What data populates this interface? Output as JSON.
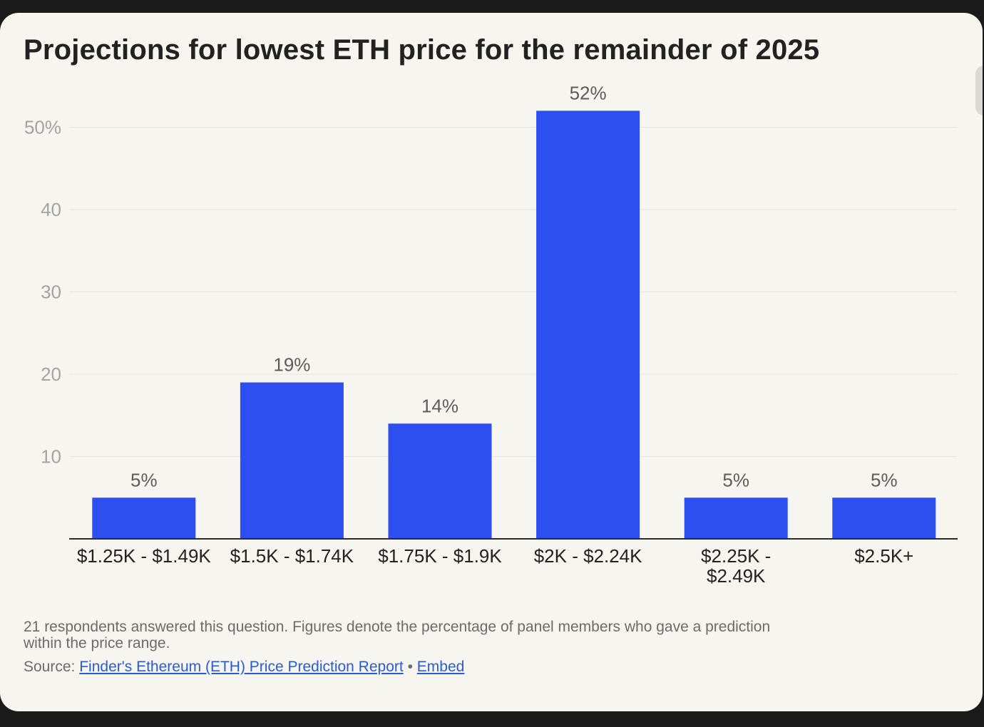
{
  "title": "Projections for lowest ETH price for the remainder of 2025",
  "note": "21 respondents answered this question. Figures denote the percentage of panel members who gave a prediction within the price range.",
  "source": {
    "label": "Source:",
    "link_text": "Finder's Ethereum (ETH) Price Prediction Report",
    "separator": "•",
    "embed_text": "Embed",
    "link_color": "#2a5bd7"
  },
  "colors": {
    "bar": "#2d4ff0",
    "card": "#f6f5ef",
    "grid": "#e4e3dc"
  },
  "chart_data": {
    "type": "bar",
    "title": "Projections for lowest ETH price for the remainder of 2025",
    "xlabel": "",
    "ylabel": "",
    "categories": [
      "$1.25K - $1.49K",
      "$1.5K - $1.74K",
      "$1.75K - $1.9K",
      "$2K - $2.24K",
      "$2.25K - $2.49K",
      "$2.5K+"
    ],
    "values": [
      5,
      19,
      14,
      52,
      5,
      5
    ],
    "data_labels": [
      "5%",
      "19%",
      "14%",
      "52%",
      "5%",
      "5%"
    ],
    "ylim": [
      0,
      52
    ],
    "y_ticks": [
      10,
      20,
      30,
      40,
      50
    ],
    "y_tick_labels": [
      "10",
      "20",
      "30",
      "40",
      "50%"
    ],
    "grid": true,
    "legend": "none"
  }
}
